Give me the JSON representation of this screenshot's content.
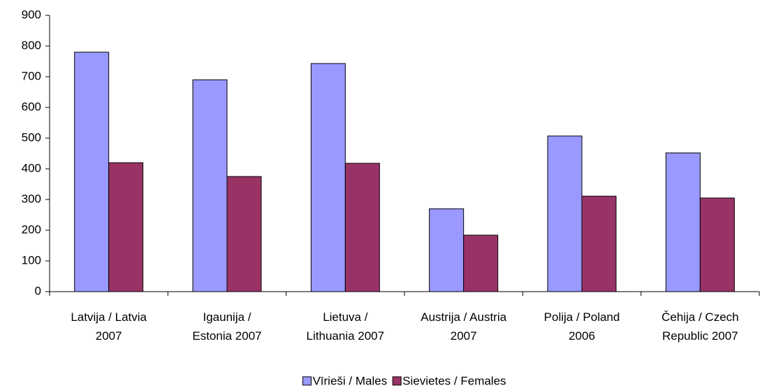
{
  "chart_data": {
    "type": "bar",
    "categories": [
      "Latvija / Latvia 2007",
      "Igaunija / Estonia 2007",
      "Lietuva / Lithuania 2007",
      "Austrija / Austria 2007",
      "Polija / Poland 2006",
      "Čehija / Czech Republic 2007"
    ],
    "series": [
      {
        "name": "Vīrieši / Males",
        "color": "#9999ff",
        "values": [
          780,
          690,
          743,
          270,
          507,
          452
        ]
      },
      {
        "name": "Sievietes / Females",
        "color": "#993366",
        "values": [
          420,
          375,
          418,
          184,
          311,
          305
        ]
      }
    ],
    "ylim": [
      0,
      900
    ],
    "yticks": [
      0,
      100,
      200,
      300,
      400,
      500,
      600,
      700,
      800,
      900
    ],
    "legend": "bottom"
  }
}
